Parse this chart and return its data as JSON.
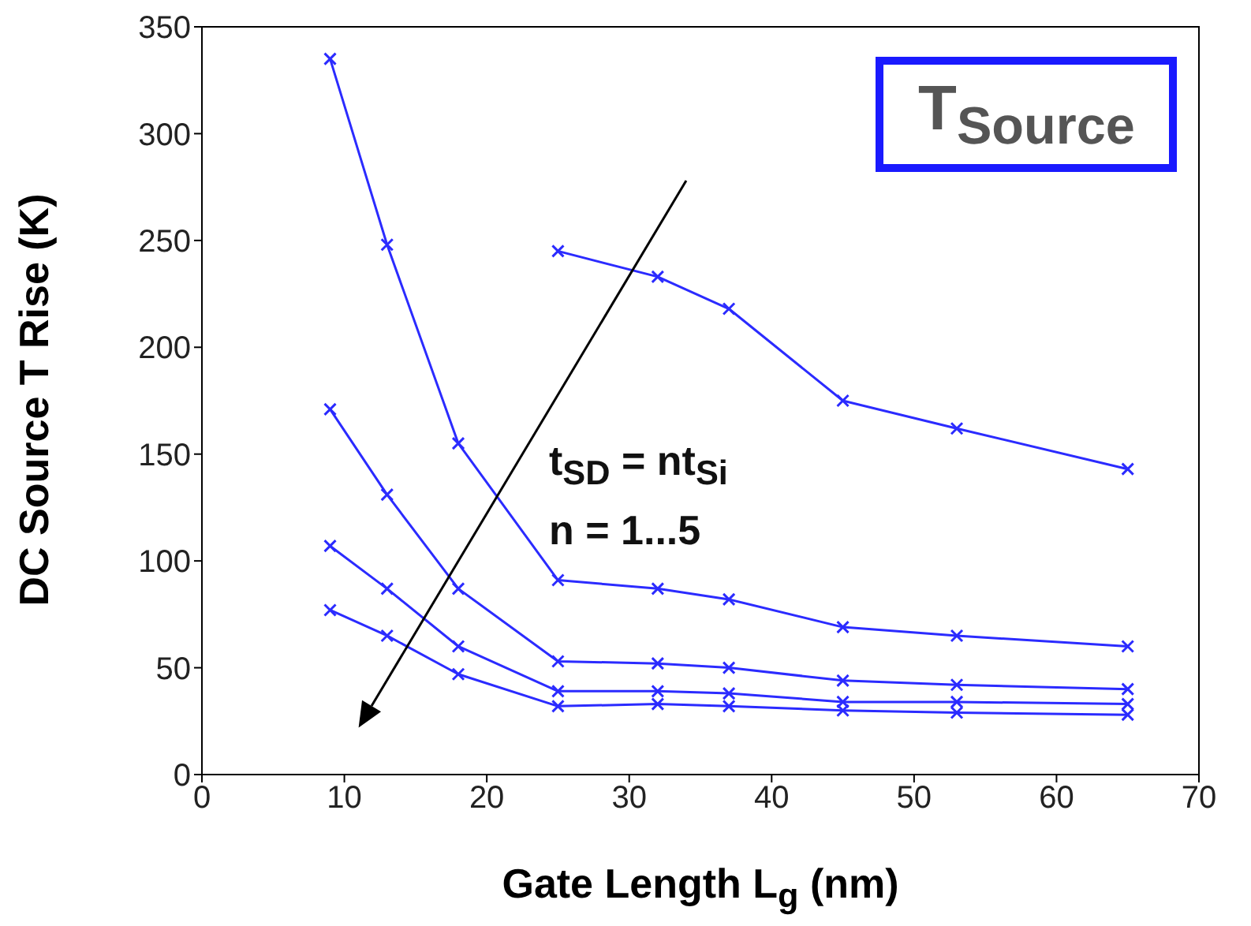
{
  "chart_data": {
    "type": "line",
    "xlabel": "Gate Length L$_{g}$ (nm)",
    "ylabel": "DC Source T Rise (K)",
    "annotations": [
      "T$_{Source}$",
      "t$_{SD}$ = nt$_{Si}$",
      "n = 1...5"
    ],
    "x": [
      9,
      13,
      18,
      25,
      32,
      37,
      45,
      53,
      65
    ],
    "series": [
      {
        "color": "#2b2bff",
        "values": [
          null,
          null,
          null,
          245,
          233,
          218,
          175,
          162,
          143
        ]
      },
      {
        "color": "#2b2bff",
        "values": [
          335,
          248,
          155,
          91,
          87,
          82,
          69,
          65,
          60
        ]
      },
      {
        "color": "#2b2bff",
        "values": [
          171,
          131,
          87,
          53,
          52,
          50,
          44,
          42,
          40
        ]
      },
      {
        "color": "#2b2bff",
        "values": [
          107,
          87,
          60,
          39,
          39,
          38,
          34,
          34,
          33
        ]
      },
      {
        "color": "#2b2bff",
        "values": [
          77,
          65,
          47,
          32,
          33,
          32,
          30,
          29,
          28
        ]
      }
    ],
    "xlim": [
      0,
      70
    ],
    "xticks": [
      0,
      10,
      20,
      30,
      40,
      50,
      60,
      70
    ],
    "ylim": [
      0,
      350
    ],
    "yticks": [
      0,
      50,
      100,
      150,
      200,
      250,
      300,
      350
    ],
    "grid": false,
    "marker": "cross",
    "line_style": "solid"
  }
}
